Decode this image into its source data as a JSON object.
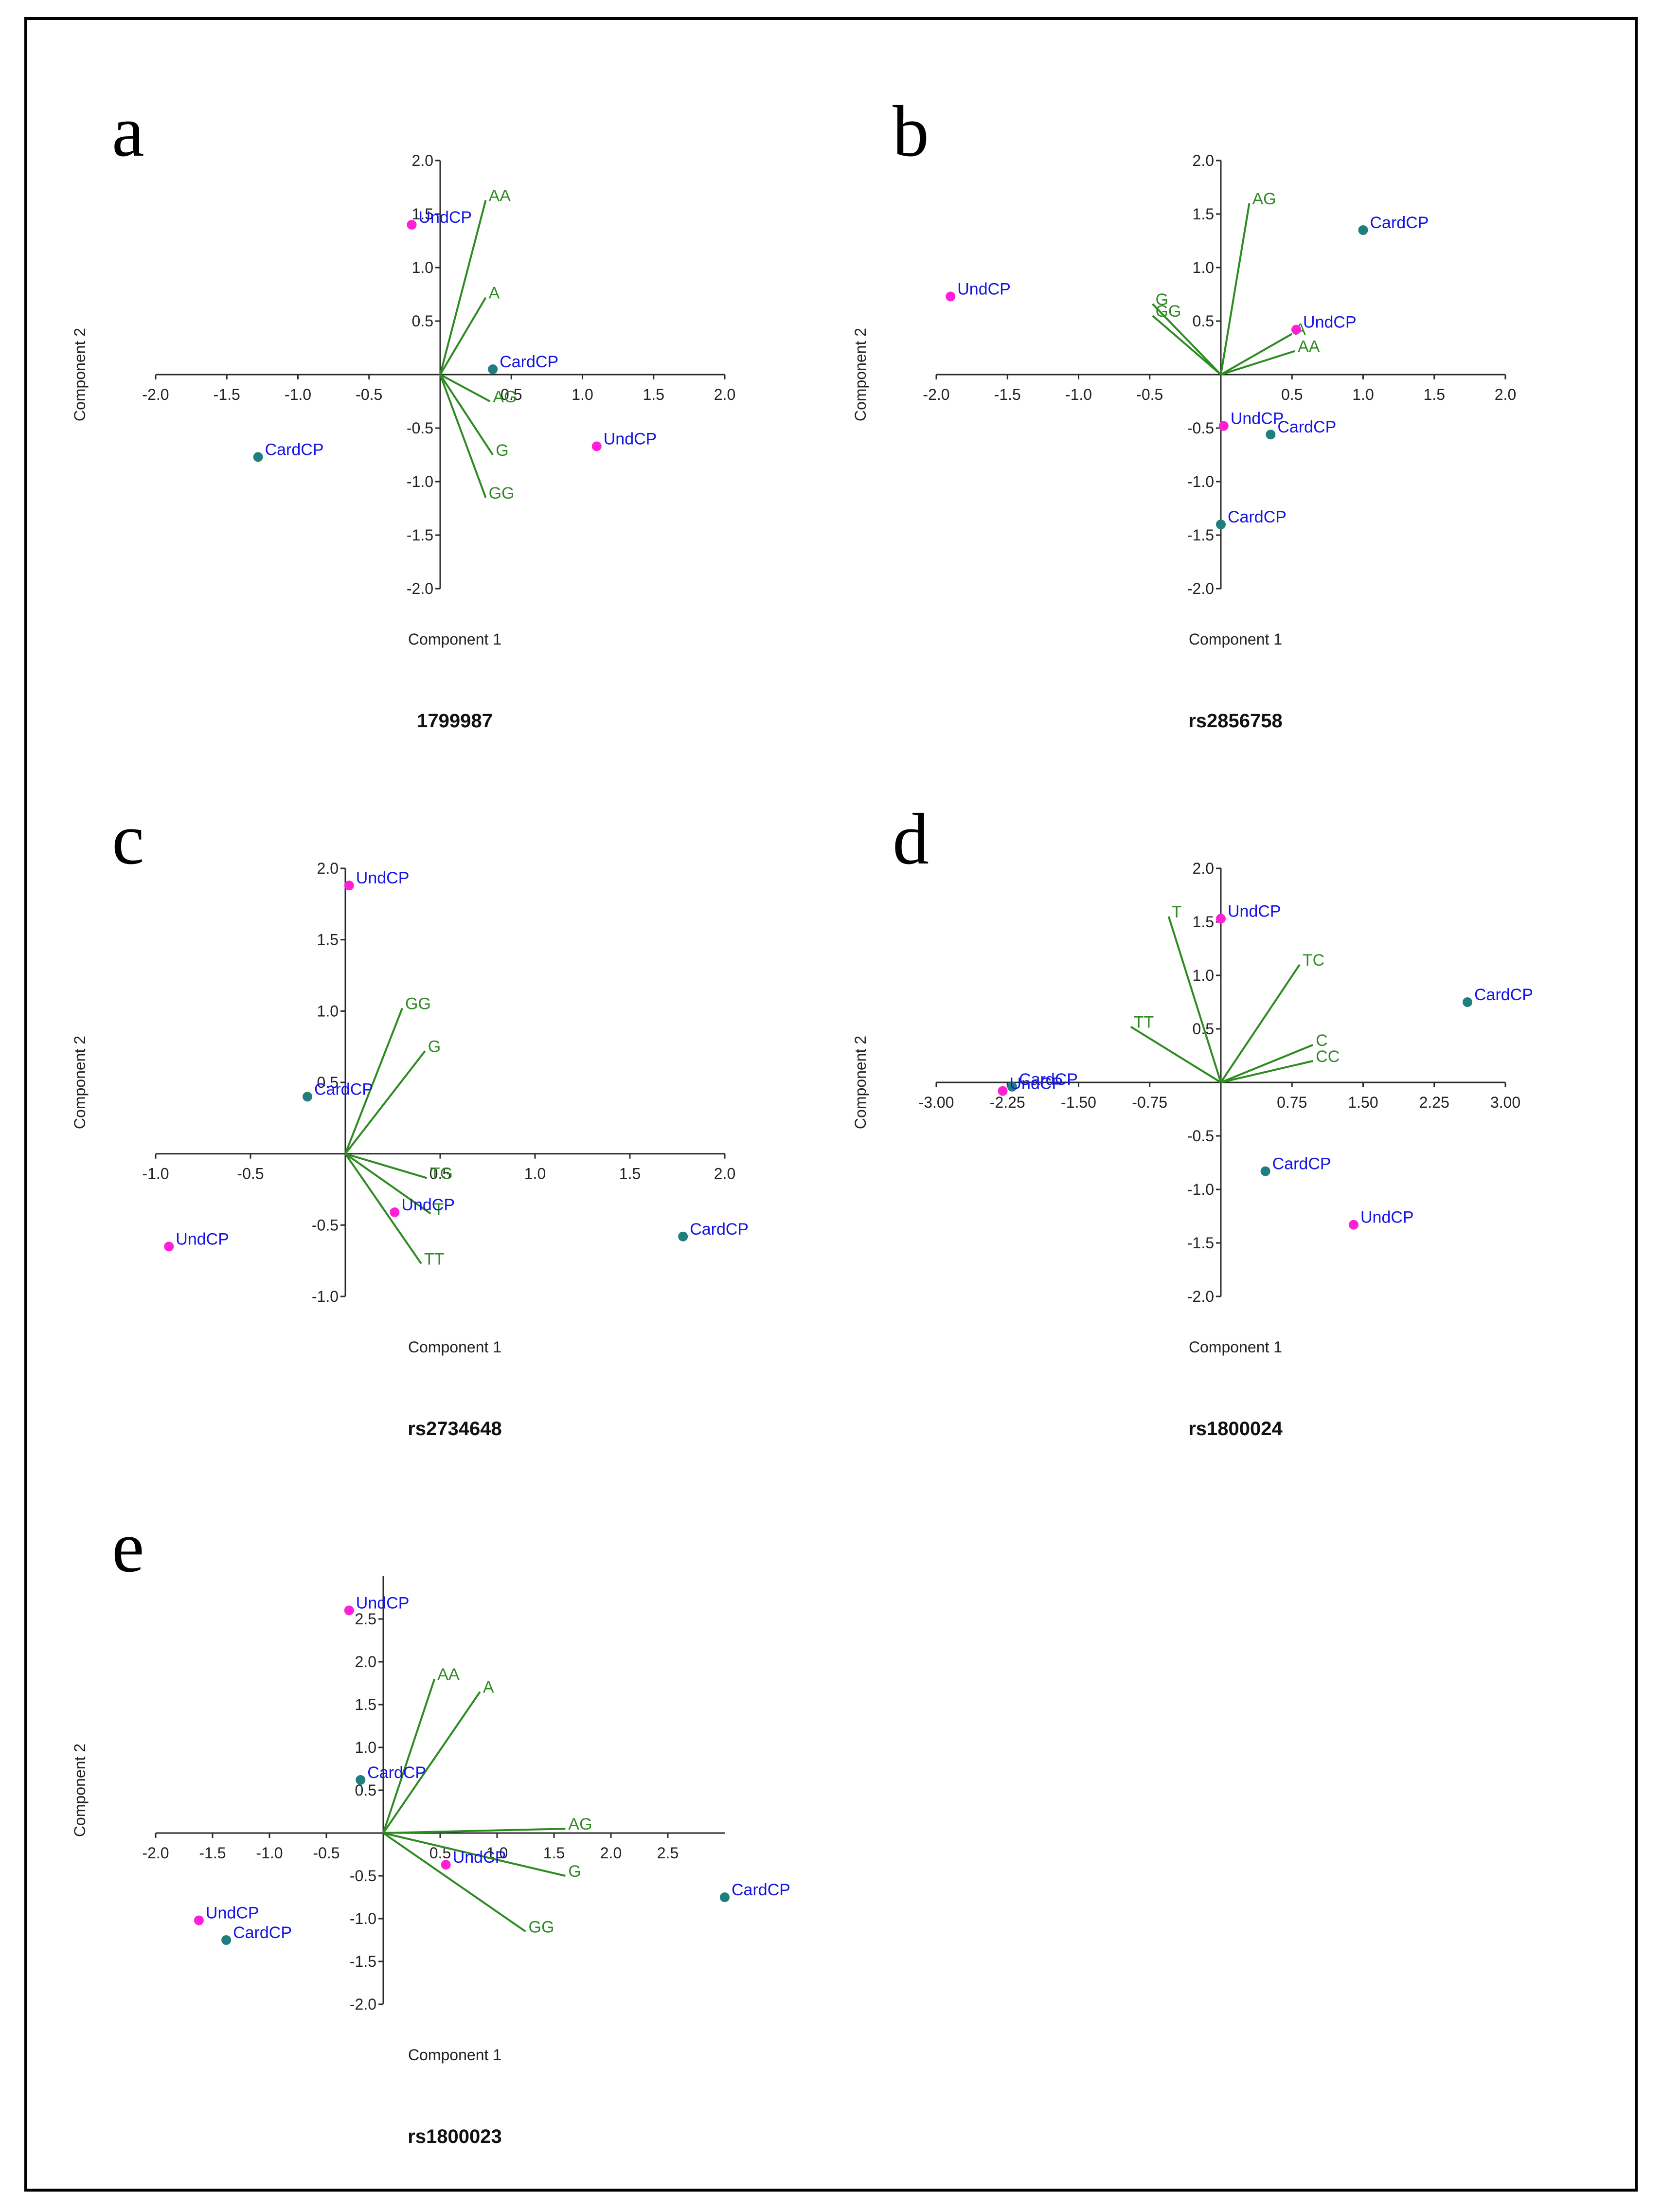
{
  "figure": {
    "colors": {
      "loading": "#2e8b22",
      "card_point": "#1f7f7f",
      "und_point": "#ff1fd6",
      "point_label": "#1414e6"
    }
  },
  "chart_data": [
    {
      "panel": "a",
      "type": "scatter",
      "title": "1799987",
      "xlabel": "Component 1",
      "ylabel": "Component 2",
      "xlim": [
        -2.0,
        2.0
      ],
      "ylim": [
        -2.0,
        2.0
      ],
      "xticks": [
        -2.0,
        -1.5,
        -1.0,
        -0.5,
        0.5,
        1.0,
        1.5,
        2.0
      ],
      "yticks": [
        -2.0,
        -1.5,
        -1.0,
        -0.5,
        0.5,
        1.0,
        1.5,
        2.0
      ],
      "tick_decimals": 1,
      "vectors": [
        {
          "label": "AA",
          "x": 0.32,
          "y": 1.63
        },
        {
          "label": "A",
          "x": 0.32,
          "y": 0.72
        },
        {
          "label": "AG",
          "x": 0.35,
          "y": -0.25
        },
        {
          "label": "G",
          "x": 0.37,
          "y": -0.75
        },
        {
          "label": "GG",
          "x": 0.32,
          "y": -1.15
        }
      ],
      "points": [
        {
          "label": "UndCP",
          "group": "und",
          "x": -0.2,
          "y": 1.4
        },
        {
          "label": "CardCP",
          "group": "card",
          "x": 0.37,
          "y": 0.05
        },
        {
          "label": "CardCP",
          "group": "card",
          "x": -1.28,
          "y": -0.77
        },
        {
          "label": "UndCP",
          "group": "und",
          "x": 1.1,
          "y": -0.67
        }
      ]
    },
    {
      "panel": "b",
      "type": "scatter",
      "title": "rs2856758",
      "xlabel": "Component 1",
      "ylabel": "Component 2",
      "xlim": [
        -2.0,
        2.0
      ],
      "ylim": [
        -2.0,
        2.0
      ],
      "xticks": [
        -2.0,
        -1.5,
        -1.0,
        -0.5,
        0.5,
        1.0,
        1.5,
        2.0
      ],
      "yticks": [
        -2.0,
        -1.5,
        -1.0,
        -0.5,
        0.5,
        1.0,
        1.5,
        2.0
      ],
      "tick_decimals": 1,
      "vectors": [
        {
          "label": "AG",
          "x": 0.2,
          "y": 1.6
        },
        {
          "label": "G",
          "x": -0.48,
          "y": 0.66
        },
        {
          "label": "GG",
          "x": -0.48,
          "y": 0.55
        },
        {
          "label": "A",
          "x": 0.5,
          "y": 0.38
        },
        {
          "label": "AA",
          "x": 0.52,
          "y": 0.22
        }
      ],
      "points": [
        {
          "label": "CardCP",
          "group": "card",
          "x": 1.0,
          "y": 1.35
        },
        {
          "label": "UndCP",
          "group": "und",
          "x": -1.9,
          "y": 0.73
        },
        {
          "label": "UndCP",
          "group": "und",
          "x": 0.53,
          "y": 0.42
        },
        {
          "label": "UndCP",
          "group": "und",
          "x": 0.02,
          "y": -0.48
        },
        {
          "label": "CardCP",
          "group": "card",
          "x": 0.35,
          "y": -0.56
        },
        {
          "label": "CardCP",
          "group": "card",
          "x": 0.0,
          "y": -1.4
        }
      ]
    },
    {
      "panel": "c",
      "type": "scatter",
      "title": "rs2734648",
      "xlabel": "Component 1",
      "ylabel": "Component 2",
      "xlim": [
        -1.0,
        2.0
      ],
      "ylim": [
        -1.0,
        2.0
      ],
      "xticks": [
        -1.0,
        -0.5,
        0.5,
        1.0,
        1.5,
        2.0
      ],
      "yticks": [
        -1.0,
        -0.5,
        0.5,
        1.0,
        1.5,
        2.0
      ],
      "tick_decimals": 1,
      "vectors": [
        {
          "label": "GG",
          "x": 0.3,
          "y": 1.02
        },
        {
          "label": "G",
          "x": 0.42,
          "y": 0.72
        },
        {
          "label": "TG",
          "x": 0.43,
          "y": -0.17
        },
        {
          "label": "T",
          "x": 0.45,
          "y": -0.42
        },
        {
          "label": "TT",
          "x": 0.4,
          "y": -0.77
        }
      ],
      "points": [
        {
          "label": "UndCP",
          "group": "und",
          "x": 0.02,
          "y": 1.88
        },
        {
          "label": "CardCP",
          "group": "card",
          "x": -0.2,
          "y": 0.4
        },
        {
          "label": "UndCP",
          "group": "und",
          "x": 0.26,
          "y": -0.41
        },
        {
          "label": "CardCP",
          "group": "card",
          "x": 1.78,
          "y": -0.58
        },
        {
          "label": "UndCP",
          "group": "und",
          "x": -0.93,
          "y": -0.65
        }
      ]
    },
    {
      "panel": "d",
      "type": "scatter",
      "title": "rs1800024",
      "xlabel": "Component 1",
      "ylabel": "Component 2",
      "xlim": [
        -3.0,
        3.0
      ],
      "ylim": [
        -2.0,
        2.0
      ],
      "xticks": [
        -3.0,
        -2.25,
        -1.5,
        -0.75,
        0.75,
        1.5,
        2.25,
        3.0
      ],
      "yticks": [
        -2.0,
        -1.5,
        -1.0,
        -0.5,
        0.5,
        1.0,
        1.5,
        2.0
      ],
      "tick_decimals_x": 2,
      "tick_decimals": 1,
      "vectors": [
        {
          "label": "T",
          "x": -0.55,
          "y": 1.55
        },
        {
          "label": "TT",
          "x": -0.95,
          "y": 0.52
        },
        {
          "label": "TC",
          "x": 0.83,
          "y": 1.1
        },
        {
          "label": "C",
          "x": 0.97,
          "y": 0.35
        },
        {
          "label": "CC",
          "x": 0.97,
          "y": 0.2
        }
      ],
      "points": [
        {
          "label": "UndCP",
          "group": "und",
          "x": 0.0,
          "y": 1.53
        },
        {
          "label": "CardCP",
          "group": "card",
          "x": 2.6,
          "y": 0.75
        },
        {
          "label": "CardCP",
          "group": "card",
          "x": -2.2,
          "y": -0.04
        },
        {
          "label": "UndCP",
          "group": "und",
          "x": -2.3,
          "y": -0.08
        },
        {
          "label": "CardCP",
          "group": "card",
          "x": 0.47,
          "y": -0.83
        },
        {
          "label": "UndCP",
          "group": "und",
          "x": 1.4,
          "y": -1.33
        }
      ]
    },
    {
      "panel": "e",
      "type": "scatter",
      "title": "rs1800023",
      "xlabel": "Component 1",
      "ylabel": "Component 2",
      "xlim": [
        -2.0,
        3.0
      ],
      "ylim": [
        -2.0,
        3.0
      ],
      "xticks": [
        -2.0,
        -1.5,
        -1.0,
        -0.5,
        0.5,
        1.0,
        1.5,
        2.0,
        2.5
      ],
      "yticks": [
        -2.0,
        -1.5,
        -1.0,
        -0.5,
        0.5,
        1.0,
        1.5,
        2.0,
        2.5
      ],
      "tick_decimals": 1,
      "vectors": [
        {
          "label": "AA",
          "x": 0.45,
          "y": 1.8
        },
        {
          "label": "A",
          "x": 0.85,
          "y": 1.65
        },
        {
          "label": "AG",
          "x": 1.6,
          "y": 0.05
        },
        {
          "label": "G",
          "x": 1.6,
          "y": -0.5
        },
        {
          "label": "GG",
          "x": 1.25,
          "y": -1.15
        }
      ],
      "points": [
        {
          "label": "UndCP",
          "group": "und",
          "x": -0.3,
          "y": 2.6
        },
        {
          "label": "CardCP",
          "group": "card",
          "x": -0.2,
          "y": 0.62
        },
        {
          "label": "UndCP",
          "group": "und",
          "x": 0.55,
          "y": -0.37
        },
        {
          "label": "CardCP",
          "group": "card",
          "x": 3.0,
          "y": -0.75
        },
        {
          "label": "UndCP",
          "group": "und",
          "x": -1.62,
          "y": -1.02
        },
        {
          "label": "CardCP",
          "group": "card",
          "x": -1.38,
          "y": -1.25
        }
      ]
    }
  ]
}
